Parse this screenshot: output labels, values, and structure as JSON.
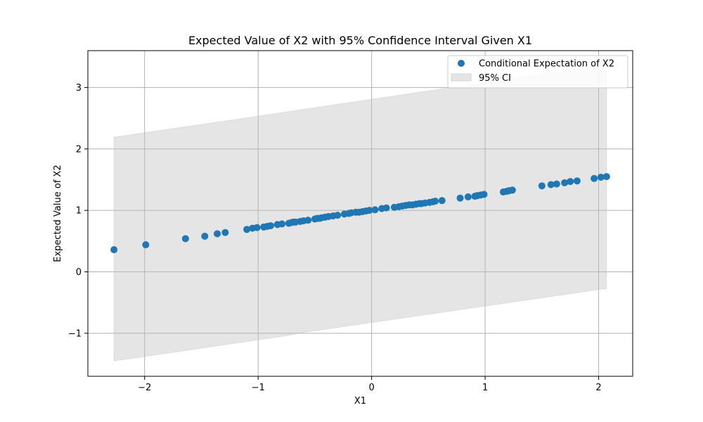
{
  "chart_data": {
    "type": "scatter",
    "title": "Expected Value of X2 with 95% Confidence Interval Given X1",
    "xlabel": "X1",
    "ylabel": "Expected Value of X2",
    "xlim": [
      -2.5,
      2.3
    ],
    "ylim": [
      -1.7,
      3.6
    ],
    "xticks": [
      {
        "value": -2,
        "label": "−2"
      },
      {
        "value": -1,
        "label": "−1"
      },
      {
        "value": 0,
        "label": "0"
      },
      {
        "value": 1,
        "label": "1"
      },
      {
        "value": 2,
        "label": "2"
      }
    ],
    "yticks": [
      {
        "value": -1,
        "label": "−1"
      },
      {
        "value": 0,
        "label": "0"
      },
      {
        "value": 1,
        "label": "1"
      },
      {
        "value": 2,
        "label": "2"
      },
      {
        "value": 3,
        "label": "3"
      }
    ],
    "grid": true,
    "legend_position": "top-right",
    "series": [
      {
        "name": "Conditional Expectation of X2",
        "kind": "scatter",
        "color": "#1f77b4",
        "x": [
          -2.27,
          -1.99,
          -1.64,
          -1.47,
          -1.36,
          -1.29,
          -1.1,
          -1.05,
          -1.01,
          -0.95,
          -0.92,
          -0.89,
          -0.83,
          -0.79,
          -0.73,
          -0.71,
          -0.69,
          -0.67,
          -0.63,
          -0.6,
          -0.56,
          -0.5,
          -0.48,
          -0.46,
          -0.44,
          -0.41,
          -0.38,
          -0.34,
          -0.3,
          -0.24,
          -0.2,
          -0.18,
          -0.14,
          -0.11,
          -0.08,
          -0.05,
          -0.02,
          0.03,
          0.09,
          0.13,
          0.2,
          0.24,
          0.27,
          0.3,
          0.33,
          0.36,
          0.39,
          0.42,
          0.44,
          0.47,
          0.51,
          0.54,
          0.56,
          0.62,
          0.78,
          0.85,
          0.91,
          0.93,
          0.96,
          0.99,
          1.16,
          1.19,
          1.21,
          1.24,
          1.5,
          1.58,
          1.63,
          1.7,
          1.75,
          1.81,
          1.96,
          2.02,
          2.07
        ],
        "y": [
          0.36,
          0.44,
          0.54,
          0.58,
          0.62,
          0.64,
          0.69,
          0.71,
          0.72,
          0.73,
          0.74,
          0.75,
          0.77,
          0.78,
          0.79,
          0.8,
          0.81,
          0.81,
          0.82,
          0.83,
          0.84,
          0.86,
          0.87,
          0.87,
          0.88,
          0.89,
          0.9,
          0.91,
          0.92,
          0.94,
          0.95,
          0.96,
          0.97,
          0.97,
          0.98,
          0.99,
          1.0,
          1.01,
          1.03,
          1.04,
          1.05,
          1.06,
          1.07,
          1.08,
          1.09,
          1.09,
          1.1,
          1.11,
          1.11,
          1.12,
          1.13,
          1.14,
          1.15,
          1.16,
          1.2,
          1.22,
          1.23,
          1.24,
          1.25,
          1.26,
          1.3,
          1.31,
          1.32,
          1.33,
          1.4,
          1.42,
          1.43,
          1.45,
          1.47,
          1.48,
          1.52,
          1.54,
          1.55
        ]
      },
      {
        "name": "95% CI",
        "kind": "band",
        "color": "#bdbdbd",
        "x": [
          -2.27,
          -0.79,
          -0.58,
          2.07
        ],
        "lower": [
          -1.45,
          -1.05,
          -0.98,
          -0.27
        ],
        "upper": [
          2.19,
          2.59,
          2.65,
          3.37
        ]
      }
    ]
  }
}
